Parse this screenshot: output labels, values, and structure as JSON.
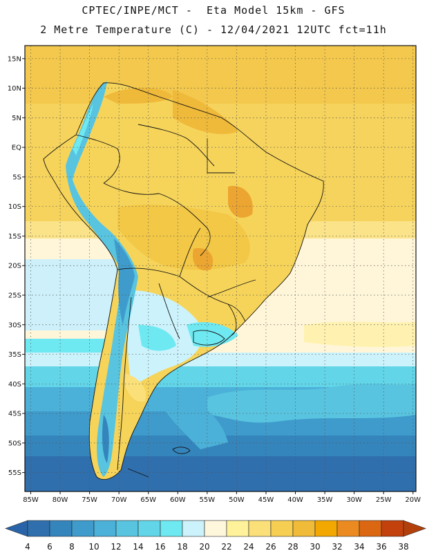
{
  "header": {
    "line1": "CPTEC/INPE/MCT -  Eta Model 15km - GFS",
    "line2": "2 Metre Temperature (C) - 12/04/2021 12UTC fct=11h"
  },
  "map": {
    "lat_labels": [
      "15N",
      "10N",
      "5N",
      "EQ",
      "5S",
      "10S",
      "15S",
      "20S",
      "25S",
      "30S",
      "35S",
      "40S",
      "45S",
      "50S",
      "55S"
    ],
    "lat_values": [
      15,
      10,
      5,
      0,
      -5,
      -10,
      -15,
      -20,
      -25,
      -30,
      -35,
      -40,
      -45,
      -50,
      -55
    ],
    "lon_labels": [
      "85W",
      "80W",
      "75W",
      "70W",
      "65W",
      "60W",
      "55W",
      "50W",
      "45W",
      "40W",
      "35W",
      "30W",
      "25W",
      "20W"
    ],
    "lon_values": [
      -85,
      -80,
      -75,
      -70,
      -65,
      -60,
      -55,
      -50,
      -45,
      -40,
      -35,
      -30,
      -25,
      -20
    ],
    "lon_range": [
      -86,
      -19.5
    ],
    "lat_range": [
      -58.2,
      17.2
    ]
  },
  "colorbar": {
    "labels": [
      "4",
      "6",
      "8",
      "10",
      "12",
      "14",
      "16",
      "18",
      "20",
      "22",
      "24",
      "26",
      "28",
      "30",
      "32",
      "34",
      "36",
      "38"
    ],
    "colors": [
      "#2f6fae",
      "#3585bd",
      "#3f9bcb",
      "#4bb1d8",
      "#58c4e0",
      "#62d6e8",
      "#6ee9f2",
      "#ccf2fb",
      "#fff7dc",
      "#fff29a",
      "#fbe07a",
      "#f6cf52",
      "#efbb38",
      "#f2a800",
      "#ec8a22",
      "#dc6712",
      "#c2410c"
    ],
    "low_color": "#2a64a8",
    "high_color": "#b3400a"
  }
}
